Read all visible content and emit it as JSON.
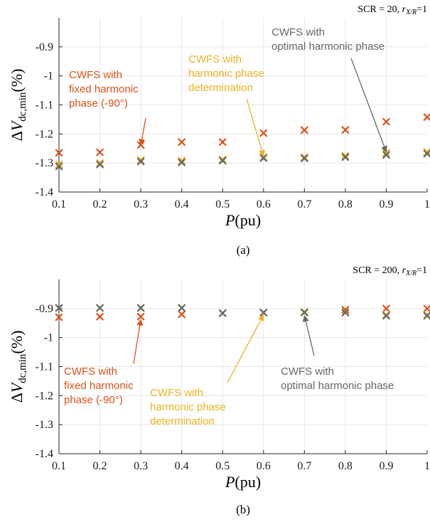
{
  "colors": {
    "fixed": "#D95319",
    "determination": "#EDB120",
    "optimal": "#666666",
    "grid": "#E6E6E6",
    "axis": "#262626"
  },
  "chart_data": [
    {
      "type": "scatter",
      "panel_label": "(a)",
      "corner_label": {
        "scr": "SCR = 20, ",
        "r_sym": "r",
        "r_sub": "X/R",
        "r_val": "=1"
      },
      "xlabel": {
        "sym": "P",
        "unit": "(pu)"
      },
      "ylabel": {
        "delta": "Δ",
        "sym": "V",
        "sub": "dc,min",
        "unit": "(%)"
      },
      "xlim": [
        0.1,
        1
      ],
      "ylim": [
        -1.4,
        -0.8
      ],
      "xticks": [
        0.1,
        0.2,
        0.3,
        0.4,
        0.5,
        0.6,
        0.7,
        0.8,
        0.9,
        1
      ],
      "xtick_labels": [
        "0.1",
        "0.2",
        "0.3",
        "0.4",
        "0.5",
        "0.6",
        "0.7",
        "0.8",
        "0.9",
        "1"
      ],
      "yticks": [
        -1.4,
        -1.3,
        -1.2,
        -1.1,
        -1,
        -0.9
      ],
      "ytick_labels": [
        "-1.4",
        "-1.3",
        "-1.2",
        "-1.1",
        "-1",
        "-0.9"
      ],
      "grid": true,
      "x": [
        0.1,
        0.2,
        0.3,
        0.4,
        0.5,
        0.6,
        0.7,
        0.8,
        0.9,
        1
      ],
      "series": [
        {
          "key": "fixed",
          "values": [
            -1.265,
            -1.263,
            -1.238,
            -1.228,
            -1.228,
            -1.197,
            -1.187,
            -1.186,
            -1.158,
            -1.142
          ]
        },
        {
          "key": "determination",
          "values": [
            -1.305,
            -1.3,
            -1.29,
            -1.292,
            -1.288,
            -1.28,
            -1.28,
            -1.275,
            -1.265,
            -1.262
          ]
        },
        {
          "key": "optimal",
          "values": [
            -1.312,
            -1.305,
            -1.295,
            -1.298,
            -1.292,
            -1.283,
            -1.284,
            -1.28,
            -1.272,
            -1.268
          ]
        }
      ],
      "annotations": [
        {
          "key": "fixed",
          "lines": [
            "CWFS with",
            "fixed harmonic",
            "phase (-90°)"
          ],
          "arrow_to": [
            0.3,
            -1.238
          ]
        },
        {
          "key": "determination",
          "lines": [
            "CWFS with",
            "harmonic phase",
            "determination"
          ],
          "arrow_to": [
            0.6,
            -1.276
          ]
        },
        {
          "key": "optimal",
          "lines": [
            "CWFS with",
            "optimal harmonic phase"
          ],
          "arrow_to": [
            0.9,
            -1.262
          ]
        }
      ]
    },
    {
      "type": "scatter",
      "panel_label": "(b)",
      "corner_label": {
        "scr": "SCR = 200, ",
        "r_sym": "r",
        "r_sub": "X/R",
        "r_val": "=1"
      },
      "xlabel": {
        "sym": "P",
        "unit": "(pu)"
      },
      "ylabel": {
        "delta": "Δ",
        "sym": "V",
        "sub": "dc,min",
        "unit": "(%)"
      },
      "xlim": [
        0.1,
        1
      ],
      "ylim": [
        -1.4,
        -0.8
      ],
      "xticks": [
        0.1,
        0.2,
        0.3,
        0.4,
        0.5,
        0.6,
        0.7,
        0.8,
        0.9,
        1
      ],
      "xtick_labels": [
        "0.1",
        "0.2",
        "0.3",
        "0.4",
        "0.5",
        "0.6",
        "0.7",
        "0.8",
        "0.9",
        "1"
      ],
      "yticks": [
        -1.4,
        -1.3,
        -1.2,
        -1.1,
        -1,
        -0.9
      ],
      "ytick_labels": [
        "-1.4",
        "-1.3",
        "-1.2",
        "-1.1",
        "-1",
        "-0.9"
      ],
      "grid": true,
      "x": [
        0.1,
        0.2,
        0.3,
        0.4,
        0.5,
        0.6,
        0.7,
        0.8,
        0.9,
        1
      ],
      "series": [
        {
          "key": "fixed",
          "values": [
            -0.93,
            -0.928,
            -0.928,
            -0.92,
            -0.916,
            -0.914,
            -0.912,
            -0.904,
            -0.9,
            -0.9
          ]
        },
        {
          "key": "determination",
          "values": [
            -0.898,
            -0.898,
            -0.898,
            -0.898,
            -0.916,
            -0.914,
            -0.912,
            -0.912,
            -0.922,
            -0.922
          ]
        },
        {
          "key": "optimal",
          "values": [
            -0.898,
            -0.898,
            -0.898,
            -0.898,
            -0.916,
            -0.914,
            -0.914,
            -0.914,
            -0.925,
            -0.925
          ]
        }
      ],
      "annotations": [
        {
          "key": "fixed",
          "lines": [
            "CWFS with",
            "fixed harmonic",
            "phase (-90°)"
          ],
          "arrow_to": [
            0.3,
            -0.938
          ]
        },
        {
          "key": "determination",
          "lines": [
            "CWFS with",
            "harmonic phase",
            "determination"
          ],
          "arrow_to": [
            0.6,
            -0.922
          ]
        },
        {
          "key": "optimal",
          "lines": [
            "CWFS with",
            "optimal harmonic phase"
          ],
          "arrow_to": [
            0.7,
            -0.925
          ]
        }
      ]
    }
  ]
}
